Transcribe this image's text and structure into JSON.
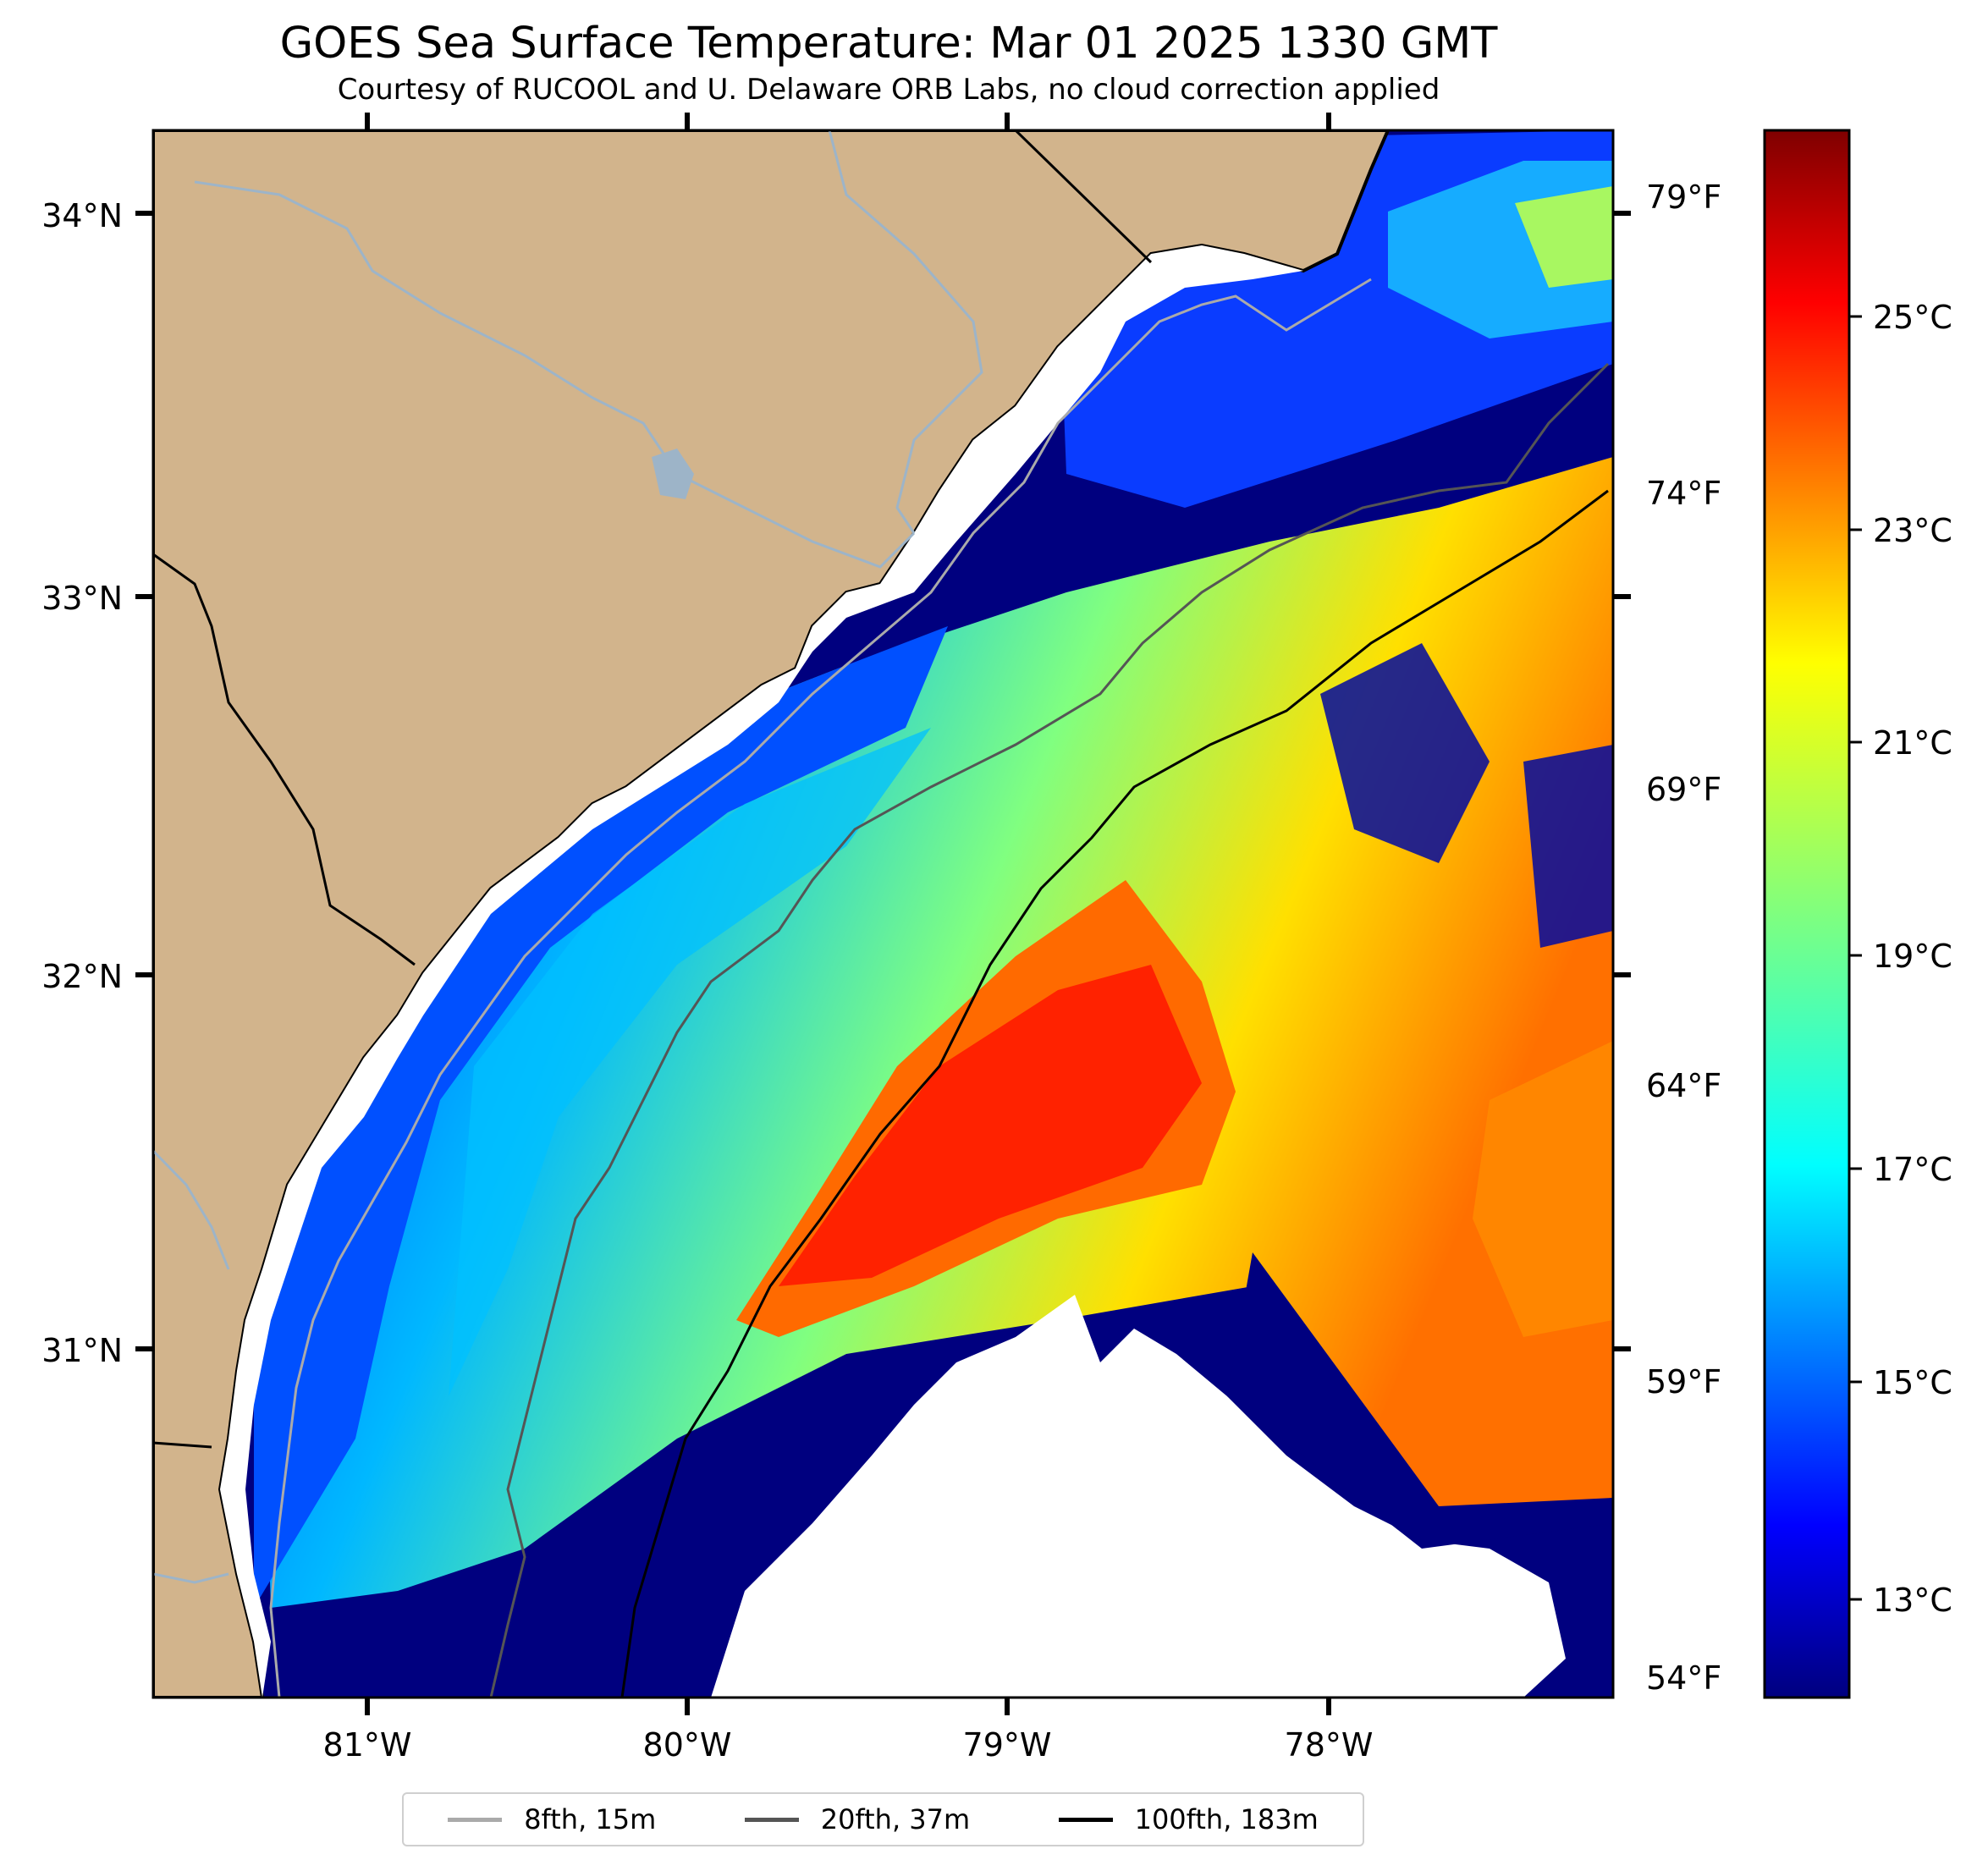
{
  "title": "GOES Sea Surface Temperature: Mar 01 2025 1330 GMT",
  "subtitle": "Courtesy of RUCOOL and U. Delaware ORB Labs, no cloud correction applied",
  "lat_labels": [
    "34°N",
    "33°N",
    "32°N",
    "31°N"
  ],
  "lon_labels": [
    "81°W",
    "80°W",
    "79°W",
    "78°W"
  ],
  "fahrenheit_labels": [
    "79°F",
    "74°F",
    "69°F",
    "64°F",
    "59°F",
    "54°F"
  ],
  "celsius_labels": [
    "25°C",
    "23°C",
    "21°C",
    "19°C",
    "17°C",
    "15°C",
    "13°C"
  ],
  "legend": [
    {
      "label": "8fth, 15m",
      "color": "#aaaaaa"
    },
    {
      "label": "20fth, 37m",
      "color": "#555555"
    },
    {
      "label": "100fth, 183m",
      "color": "#000000"
    }
  ],
  "colors": {
    "land": "#d2b48c",
    "ocean_cold": "#00007f",
    "ocean_warm": "#ff2a00",
    "cloud": "#ffffff",
    "rivers": "#9db4c8"
  },
  "colormap": "jet"
}
